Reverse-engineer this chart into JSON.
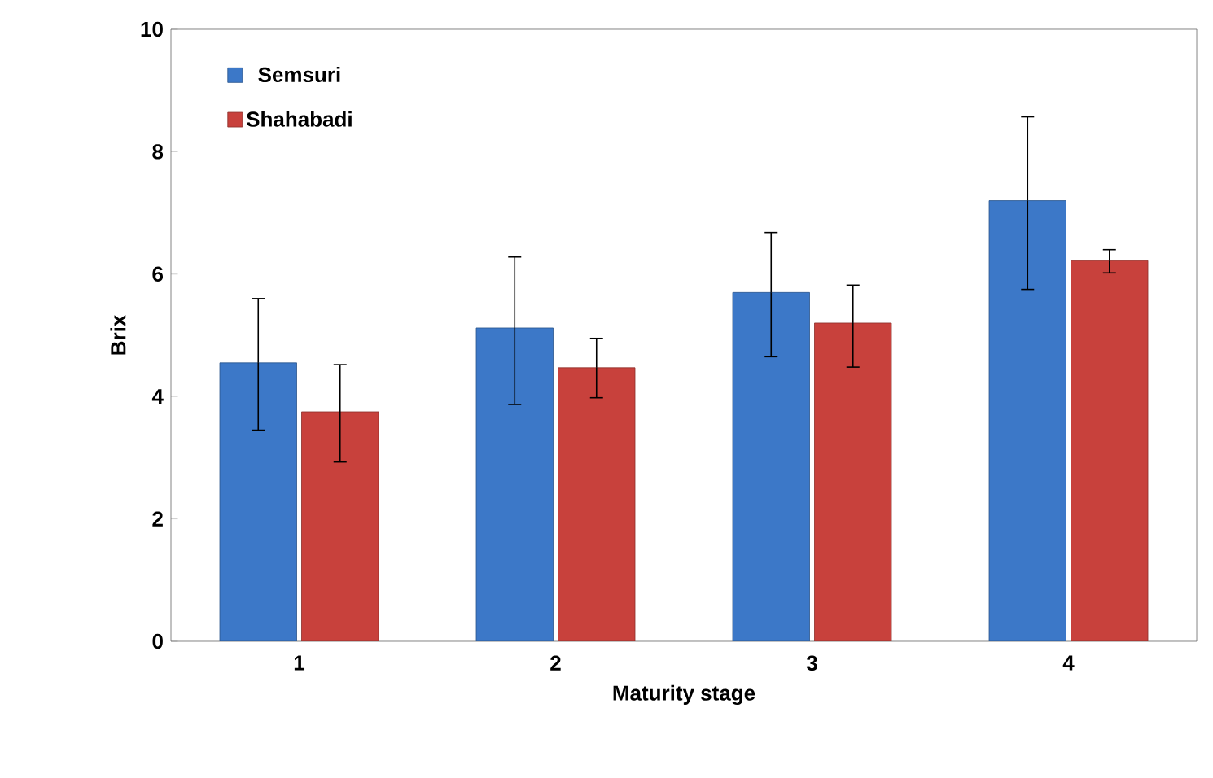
{
  "chart_data": {
    "type": "bar",
    "xlabel": "Maturity stage",
    "ylabel": "Brix",
    "categories": [
      "1",
      "2",
      "3",
      "4"
    ],
    "series": [
      {
        "name": "Semsuri",
        "color": "#3c78c8",
        "values": [
          4.55,
          5.12,
          5.7,
          7.2
        ],
        "errors": [
          [
            3.45,
            5.6
          ],
          [
            3.87,
            6.28
          ],
          [
            4.65,
            6.68
          ],
          [
            5.75,
            8.57
          ]
        ]
      },
      {
        "name": "Shahabadi",
        "color": "#c8413c",
        "values": [
          3.75,
          4.47,
          5.2,
          6.22
        ],
        "errors": [
          [
            2.93,
            4.52
          ],
          [
            3.98,
            4.95
          ],
          [
            4.48,
            5.82
          ],
          [
            6.02,
            6.4
          ]
        ]
      }
    ],
    "ylim": [
      0,
      10
    ],
    "yticks": [
      0,
      2,
      4,
      6,
      8,
      10
    ],
    "legend": "top left",
    "grid": false
  }
}
